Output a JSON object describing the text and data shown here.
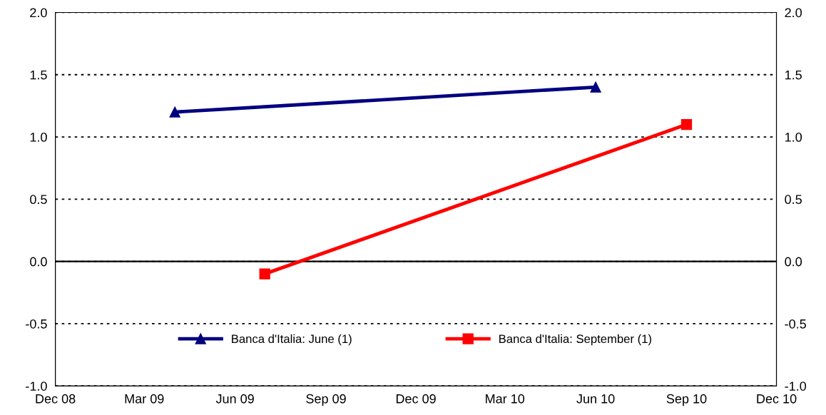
{
  "chart_data": {
    "type": "line",
    "series": [
      {
        "name": "Banca d'Italia: June (1)",
        "color": "#000080",
        "marker": "triangle",
        "x": [
          "2009-04",
          "2010-06"
        ],
        "values": [
          1.2,
          1.4
        ]
      },
      {
        "name": "Banca d'Italia: September (1)",
        "color": "#ff0000",
        "marker": "square",
        "x": [
          "2009-07",
          "2010-09"
        ],
        "values": [
          -0.1,
          1.1
        ]
      }
    ],
    "xlim": [
      "2008-12",
      "2010-12"
    ],
    "xticks": [
      {
        "value": "2008-12",
        "label": "Dec 08"
      },
      {
        "value": "2009-03",
        "label": "Mar 09"
      },
      {
        "value": "2009-06",
        "label": "Jun 09"
      },
      {
        "value": "2009-09",
        "label": "Sep 09"
      },
      {
        "value": "2009-12",
        "label": "Dec 09"
      },
      {
        "value": "2010-03",
        "label": "Mar 10"
      },
      {
        "value": "2010-06",
        "label": "Jun 10"
      },
      {
        "value": "2010-09",
        "label": "Sep 10"
      },
      {
        "value": "2010-12",
        "label": "Dec 10"
      }
    ],
    "ylim": [
      -1,
      2
    ],
    "yticks": [
      {
        "value": -1,
        "label": "-1.0"
      },
      {
        "value": -0.5,
        "label": "-0.5"
      },
      {
        "value": 0,
        "label": "0.0"
      },
      {
        "value": 0.5,
        "label": "0.5"
      },
      {
        "value": 1,
        "label": "1.0"
      },
      {
        "value": 1.5,
        "label": "1.5"
      },
      {
        "value": 2,
        "label": "2.0"
      }
    ],
    "y2lim": [
      -1,
      2
    ],
    "y2ticks": [
      {
        "value": -1,
        "label": "-1.0"
      },
      {
        "value": -0.5,
        "label": "-0.5"
      },
      {
        "value": 0,
        "label": "0.0"
      },
      {
        "value": 0.5,
        "label": "0.5"
      },
      {
        "value": 1,
        "label": "1.0"
      },
      {
        "value": 1.5,
        "label": "1.5"
      },
      {
        "value": 2,
        "label": "2.0"
      }
    ],
    "ref_lines": [
      {
        "axis": "y",
        "value": 0,
        "color": "#000000",
        "line_style": "solid"
      }
    ],
    "grid": "y",
    "legend": "bottom",
    "line_style": "solid"
  }
}
